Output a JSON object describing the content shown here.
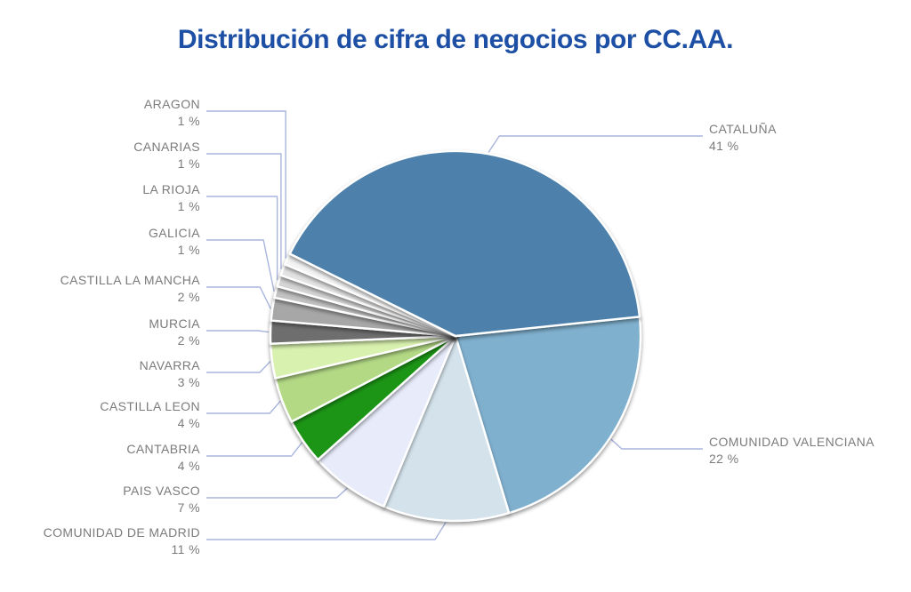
{
  "title": "Distribución de cifra de negocios por CC.AA.",
  "chart_data": {
    "type": "pie",
    "title": "Distribución de cifra de negocios por CC.AA.",
    "unit": "%",
    "start_angle_deg": 153.6,
    "direction": "clockwise",
    "legend_position": "outside-callout-labels",
    "slices": [
      {
        "name": "CATALUÑA",
        "value": 41,
        "pct_label": "41 %",
        "color": "#4d81ab"
      },
      {
        "name": "COMUNIDAD VALENCIANA",
        "value": 22,
        "pct_label": "22 %",
        "color": "#7fb0ce"
      },
      {
        "name": "COMUNIDAD DE MADRID",
        "value": 11,
        "pct_label": "11 %",
        "color": "#d4e2eb"
      },
      {
        "name": "PAIS VASCO",
        "value": 7,
        "pct_label": "7 %",
        "color": "#e7ebfa"
      },
      {
        "name": "CANTABRIA",
        "value": 4,
        "pct_label": "4 %",
        "color": "#1f9519"
      },
      {
        "name": "CASTILLA LEON",
        "value": 4,
        "pct_label": "4 %",
        "color": "#b3d985"
      },
      {
        "name": "NAVARRA",
        "value": 3,
        "pct_label": "3 %",
        "color": "#d8f1ae"
      },
      {
        "name": "MURCIA",
        "value": 2,
        "pct_label": "2 %",
        "color": "#6e6e6e"
      },
      {
        "name": "CASTILLA LA MANCHA",
        "value": 2,
        "pct_label": "2 %",
        "color": "#a7a7a7"
      },
      {
        "name": "GALICIA",
        "value": 1,
        "pct_label": "1 %",
        "color": "#c2c2c2"
      },
      {
        "name": "LA RIOJA",
        "value": 1,
        "pct_label": "1 %",
        "color": "#d4d4d4"
      },
      {
        "name": "CANARIAS",
        "value": 1,
        "pct_label": "1 %",
        "color": "#e3e3e3"
      },
      {
        "name": "ARAGON",
        "value": 1,
        "pct_label": "1 %",
        "color": "#f3f3f3"
      }
    ]
  },
  "style": {
    "title_color": "#1d4fa5",
    "label_color": "#7b7b7b",
    "leader_line_color": "#a8b5dd",
    "slice_gap_color": "#ffffff",
    "background": "#ffffff"
  }
}
